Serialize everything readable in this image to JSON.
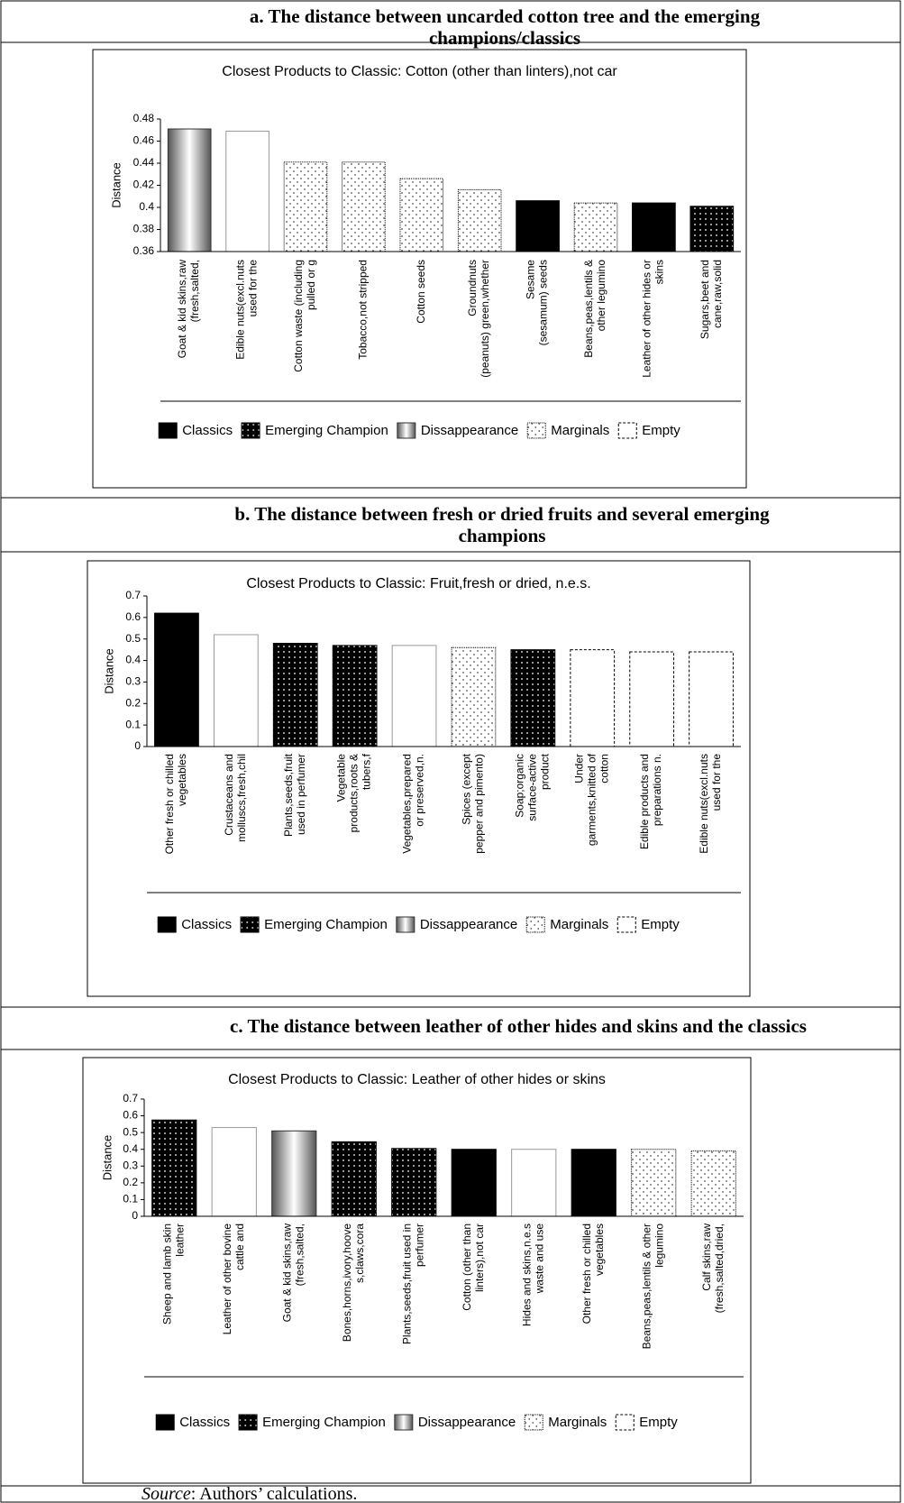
{
  "headings": [
    "a. The  distance between uncarded cotton tree and the emerging\nchampions/classics",
    "b. The distance between fresh or dried fruits and several emerging\nchampions",
    "c. The  distance between leather of other hides and skins and the classics"
  ],
  "source": {
    "label": "Source",
    "text": ": Authors’ calculations."
  },
  "chart_data": [
    {
      "type": "bar",
      "title": "Closest Products to Classic: Cotton (other than linters),not car",
      "y_label": "Distance",
      "categories": [
        "Goat & kid skins,raw\n(fresh,salted,",
        "Edible nuts(excl.nuts\nused for the",
        "Cotton waste (including\npulled or g",
        "Tobacco,not stripped",
        "Cotton seeds",
        "Groundnuts\n(peanuts) green,whether",
        "Sesame\n(sesamum) seeds",
        "Beans,peas,lentils &\nother legumino",
        "Leather of other hides or\nskins",
        "Sugars,beet and\ncane,raw,solid"
      ],
      "values": [
        0.471,
        0.469,
        0.441,
        0.441,
        0.426,
        0.416,
        0.406,
        0.404,
        0.404,
        0.401
      ],
      "bar_styles": [
        "gradient",
        "outline",
        "dots-light",
        "dots-light",
        "dots-light",
        "dots-light",
        "solid",
        "dots-light",
        "solid",
        "dots-dark"
      ],
      "ylim": [
        0.36,
        0.48
      ],
      "yticks": [
        0.36,
        0.38,
        0.4,
        0.42,
        0.44,
        0.46,
        0.48
      ],
      "legend": [
        {
          "name": "Classics",
          "style": "solid"
        },
        {
          "name": "Emerging Champion",
          "style": "dots-dark"
        },
        {
          "name": "Dissappearance",
          "style": "gradient"
        },
        {
          "name": "Marginals",
          "style": "dots-light"
        },
        {
          "name": "Empty",
          "style": "dashed"
        }
      ]
    },
    {
      "type": "bar",
      "title": "Closest Products to Classic: Fruit,fresh or dried, n.e.s.",
      "y_label": "Distance",
      "categories": [
        "Other fresh or chilled\nvegetables",
        "Crustaceans and\nmolluscs,fresh,chil",
        "Plants,seeds,fruit\nused in perfumer",
        "Vegetable\nproducts,roots &\ntubers,f",
        "Vegetables,prepared\nor preserved,n.",
        "Spices (except\npepper and pimento)",
        "Soap;organic\nsurface-active\nproduct",
        "Under\ngarments,knitted of\ncotton",
        "Edible products and\npreparations n.",
        "Edible nuts(excl.nuts\nused for the"
      ],
      "values": [
        0.62,
        0.52,
        0.48,
        0.47,
        0.47,
        0.46,
        0.45,
        0.45,
        0.44,
        0.44
      ],
      "bar_styles": [
        "solid",
        "outline",
        "dots-dark",
        "dots-dark",
        "outline",
        "dots-light",
        "dots-dark",
        "dashed",
        "dashed",
        "dashed"
      ],
      "ylim": [
        0,
        0.7
      ],
      "yticks": [
        0,
        0.1,
        0.2,
        0.3,
        0.4,
        0.5,
        0.6,
        0.7
      ],
      "legend": [
        {
          "name": "Classics",
          "style": "solid"
        },
        {
          "name": "Emerging Champion",
          "style": "dots-dark"
        },
        {
          "name": "Dissappearance",
          "style": "gradient"
        },
        {
          "name": "Marginals",
          "style": "dots-light"
        },
        {
          "name": "Empty",
          "style": "dashed"
        }
      ]
    },
    {
      "type": "bar",
      "title": "Closest Products to Classic: Leather of other hides or skins",
      "y_label": "Distance",
      "categories": [
        "Sheep and lamb skin\nleather",
        "Leather of other bovine\ncattle and",
        "Goat & kid skins,raw\n(fresh,salted,",
        "Bones,horns,ivory,hoove\ns,claws,cora",
        "Plants,seeds,fruit used in\nperfumer",
        "Cotton (other than\nlinters),not car",
        "Hides and skins,n.e.s\nwaste and use",
        "Other fresh or chilled\nvegetables",
        "Beans,peas,lentils & other\nlegumino",
        "Calf skins,raw\n(fresh,salted,dried,"
      ],
      "values": [
        0.575,
        0.53,
        0.51,
        0.445,
        0.405,
        0.4,
        0.4,
        0.4,
        0.4,
        0.39
      ],
      "bar_styles": [
        "dots-dark",
        "outline",
        "gradient",
        "dots-dark",
        "dots-dark",
        "solid",
        "outline",
        "solid",
        "dots-light",
        "dots-light"
      ],
      "ylim": [
        0,
        0.7
      ],
      "yticks": [
        0,
        0.1,
        0.2,
        0.3,
        0.4,
        0.5,
        0.6,
        0.7
      ],
      "legend": [
        {
          "name": "Classics",
          "style": "solid"
        },
        {
          "name": "Emerging Champion",
          "style": "dots-dark"
        },
        {
          "name": "Dissappearance",
          "style": "gradient"
        },
        {
          "name": "Marginals",
          "style": "dots-light"
        },
        {
          "name": "Empty",
          "style": "dashed"
        }
      ]
    }
  ]
}
